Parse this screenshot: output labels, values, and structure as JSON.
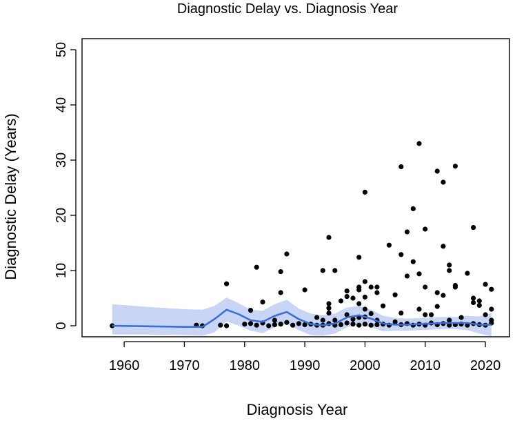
{
  "chart_data": {
    "type": "scatter",
    "title": "Diagnostic Delay vs. Diagnosis Year",
    "xlabel": "Diagnosis Year",
    "ylabel": "Diagnostic Delay (Years)",
    "xlim": [
      1953,
      2024
    ],
    "ylim": [
      -2,
      52
    ],
    "xticks": [
      1960,
      1970,
      1980,
      1990,
      2000,
      2010,
      2020
    ],
    "yticks": [
      0,
      10,
      20,
      30,
      40,
      50
    ],
    "colors": {
      "points": "#000000",
      "smooth_line": "#3a6fd8",
      "confidence_band": "#c8d5f5",
      "axes": "#000000"
    },
    "series": [
      {
        "name": "observations",
        "type": "scatter",
        "points": [
          [
            1958,
            0
          ],
          [
            1972,
            0.1
          ],
          [
            1973,
            0
          ],
          [
            1976,
            0.1
          ],
          [
            1977,
            0
          ],
          [
            1977,
            7.6
          ],
          [
            1980,
            0.3
          ],
          [
            1981,
            2.8
          ],
          [
            1981,
            0.4
          ],
          [
            1982,
            10.6
          ],
          [
            1982,
            0.1
          ],
          [
            1983,
            4.3
          ],
          [
            1983,
            0.5
          ],
          [
            1984,
            0
          ],
          [
            1985,
            0.2
          ],
          [
            1985,
            1
          ],
          [
            1986,
            9.8
          ],
          [
            1986,
            6
          ],
          [
            1986,
            0.3
          ],
          [
            1987,
            13
          ],
          [
            1987,
            0.6
          ],
          [
            1988,
            0.1
          ],
          [
            1989,
            0.4
          ],
          [
            1990,
            6.5
          ],
          [
            1990,
            0.2
          ],
          [
            1991,
            0.3
          ],
          [
            1992,
            0.1
          ],
          [
            1992,
            1.5
          ],
          [
            1993,
            10
          ],
          [
            1993,
            0.1
          ],
          [
            1993,
            1
          ],
          [
            1994,
            16
          ],
          [
            1994,
            4
          ],
          [
            1994,
            3.2
          ],
          [
            1994,
            2.3
          ],
          [
            1994,
            0.4
          ],
          [
            1995,
            10
          ],
          [
            1995,
            1
          ],
          [
            1995,
            0.1
          ],
          [
            1996,
            4.5
          ],
          [
            1996,
            0.2
          ],
          [
            1997,
            6.3
          ],
          [
            1997,
            5.3
          ],
          [
            1997,
            2
          ],
          [
            1997,
            0.5
          ],
          [
            1998,
            5
          ],
          [
            1998,
            1.2
          ],
          [
            1998,
            0.3
          ],
          [
            1999,
            12.4
          ],
          [
            1999,
            7
          ],
          [
            1999,
            6.5
          ],
          [
            1999,
            4
          ],
          [
            1999,
            1.5
          ],
          [
            1999,
            0.1
          ],
          [
            2000,
            24.2
          ],
          [
            2000,
            8
          ],
          [
            2000,
            5.2
          ],
          [
            2000,
            3
          ],
          [
            2000,
            1.6
          ],
          [
            2000,
            0.3
          ],
          [
            2001,
            7
          ],
          [
            2001,
            2.2
          ],
          [
            2001,
            0.1
          ],
          [
            2002,
            7
          ],
          [
            2002,
            6
          ],
          [
            2002,
            1
          ],
          [
            2002,
            0.2
          ],
          [
            2003,
            3.6
          ],
          [
            2003,
            0.3
          ],
          [
            2004,
            14.6
          ],
          [
            2004,
            0.1
          ],
          [
            2005,
            5.6
          ],
          [
            2005,
            0.7
          ],
          [
            2006,
            28.8
          ],
          [
            2006,
            12.9
          ],
          [
            2006,
            2.3
          ],
          [
            2006,
            0.2
          ],
          [
            2007,
            17
          ],
          [
            2007,
            9
          ],
          [
            2007,
            0.4
          ],
          [
            2008,
            21.2
          ],
          [
            2008,
            11.6
          ],
          [
            2008,
            0.1
          ],
          [
            2009,
            33
          ],
          [
            2009,
            9.4
          ],
          [
            2009,
            3
          ],
          [
            2009,
            0.3
          ],
          [
            2010,
            17.5
          ],
          [
            2010,
            7
          ],
          [
            2010,
            2
          ],
          [
            2010,
            0.1
          ],
          [
            2011,
            2
          ],
          [
            2011,
            0.5
          ],
          [
            2012,
            28
          ],
          [
            2012,
            6
          ],
          [
            2012,
            3.5
          ],
          [
            2012,
            0.2
          ],
          [
            2013,
            26
          ],
          [
            2013,
            14.4
          ],
          [
            2013,
            5.5
          ],
          [
            2013,
            0.4
          ],
          [
            2014,
            11
          ],
          [
            2014,
            10
          ],
          [
            2014,
            1
          ],
          [
            2014,
            0.1
          ],
          [
            2015,
            28.9
          ],
          [
            2015,
            7.3
          ],
          [
            2015,
            7
          ],
          [
            2015,
            0.2
          ],
          [
            2016,
            1.5
          ],
          [
            2016,
            0.3
          ],
          [
            2017,
            9.5
          ],
          [
            2017,
            0.1
          ],
          [
            2018,
            17.8
          ],
          [
            2018,
            5
          ],
          [
            2018,
            4.2
          ],
          [
            2018,
            0.4
          ],
          [
            2019,
            4.5
          ],
          [
            2019,
            3.7
          ],
          [
            2019,
            0.2
          ],
          [
            2020,
            7.5
          ],
          [
            2020,
            2
          ],
          [
            2020,
            0.1
          ],
          [
            2021,
            6.6
          ],
          [
            2021,
            3
          ],
          [
            2021,
            1
          ],
          [
            2021,
            0.5
          ]
        ]
      },
      {
        "name": "smooth fit",
        "type": "line",
        "x": [
          1958,
          1964,
          1970,
          1973,
          1975,
          1977,
          1979,
          1981,
          1983,
          1985,
          1987,
          1989,
          1991,
          1993,
          1995,
          1997,
          1999,
          2001,
          2003,
          2005,
          2007,
          2009,
          2011,
          2013,
          2015,
          2017,
          2019,
          2021
        ],
        "y": [
          0,
          -0.1,
          -0.2,
          -0.2,
          1.2,
          2.9,
          2.1,
          1,
          0.7,
          1.8,
          2.5,
          1.2,
          0.3,
          0.1,
          0.4,
          1.5,
          1.9,
          1.3,
          0.4,
          0.2,
          0.2,
          0.3,
          0.4,
          0.5,
          0.5,
          0.5,
          0.2,
          0.2
        ]
      },
      {
        "name": "confidence band",
        "type": "area",
        "x": [
          1958,
          1964,
          1970,
          1973,
          1975,
          1977,
          1979,
          1981,
          1983,
          1985,
          1987,
          1989,
          1991,
          1993,
          1995,
          1997,
          1999,
          2001,
          2003,
          2005,
          2007,
          2009,
          2011,
          2013,
          2015,
          2017,
          2019,
          2021
        ],
        "upper": [
          3.9,
          3.4,
          3,
          2.9,
          3.6,
          5.1,
          4.1,
          2.9,
          2.7,
          3.9,
          4.7,
          3.1,
          2.2,
          1.9,
          2.2,
          3.3,
          3.6,
          2.9,
          1.8,
          1.4,
          1.3,
          1.4,
          1.5,
          1.6,
          1.6,
          1.8,
          1.7,
          2.3
        ],
        "lower": [
          -1.6,
          -1.6,
          -1.7,
          -1.8,
          -1.2,
          0.8,
          0,
          -0.9,
          -1.3,
          -0.3,
          0.4,
          -0.8,
          -1.7,
          -1.8,
          -1.4,
          -0.3,
          0.2,
          -0.3,
          -1,
          -0.9,
          -0.9,
          -0.8,
          -0.7,
          -0.6,
          -0.6,
          -0.8,
          -1.4,
          -1.9
        ]
      }
    ]
  }
}
